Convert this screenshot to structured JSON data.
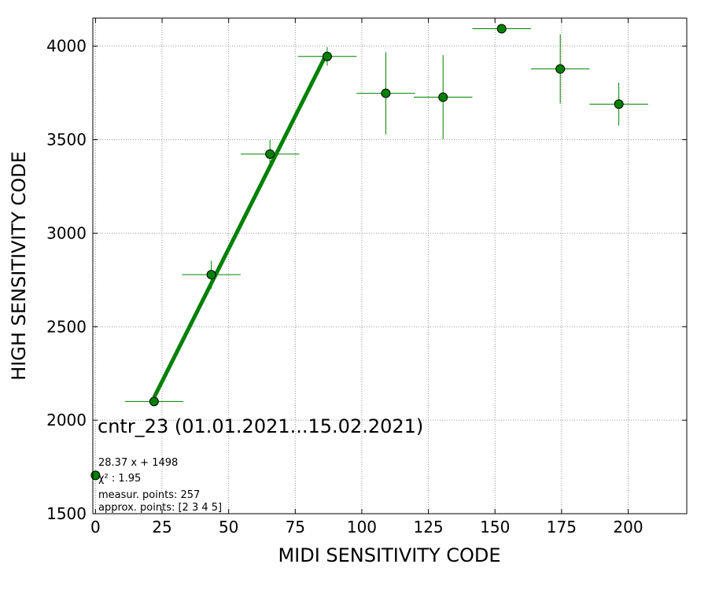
{
  "chart_data": {
    "type": "scatter",
    "xlabel": "MIDI SENSITIVITY CODE",
    "ylabel": "HIGH SENSITIVITY CODE",
    "xlim": [
      -1,
      222
    ],
    "ylim": [
      1500,
      4150
    ],
    "xticks": [
      0,
      25,
      50,
      75,
      100,
      125,
      150,
      175,
      200
    ],
    "yticks": [
      1500,
      2000,
      2500,
      3000,
      3500,
      4000
    ],
    "grid": true,
    "annotations": {
      "title": "cntr_23 (01.01.2021...15.02.2021)",
      "fit": "28.37 x + 1498",
      "chi2": "χ² : 1.95",
      "measur": "measur. points: 257",
      "approx": "approx. points: [2 3 4 5]"
    },
    "points": [
      {
        "x": 0,
        "y": 1705,
        "xerr": 0,
        "yerr": 0
      },
      {
        "x": 22,
        "y": 2100,
        "xerr": 11,
        "yerr": 20
      },
      {
        "x": 43.5,
        "y": 2778,
        "xerr": 11,
        "yerr": 75
      },
      {
        "x": 65.5,
        "y": 3423,
        "xerr": 11,
        "yerr": 75
      },
      {
        "x": 87,
        "y": 3945,
        "xerr": 11,
        "yerr": 50
      },
      {
        "x": 109,
        "y": 3748,
        "xerr": 11,
        "yerr": 220
      },
      {
        "x": 130.5,
        "y": 3727,
        "xerr": 11,
        "yerr": 225
      },
      {
        "x": 152.5,
        "y": 4093,
        "xerr": 11,
        "yerr": 0
      },
      {
        "x": 174.5,
        "y": 3878,
        "xerr": 11,
        "yerr": 185
      },
      {
        "x": 196.5,
        "y": 3690,
        "xerr": 11,
        "yerr": 115
      }
    ],
    "fit_line": {
      "slope": 28.37,
      "intercept": 1498,
      "x_range": [
        22,
        87
      ]
    },
    "colors": {
      "marker": "#008000",
      "errorbar": "#008000",
      "fit": "#008000",
      "grid": "#7f7f7f"
    }
  }
}
